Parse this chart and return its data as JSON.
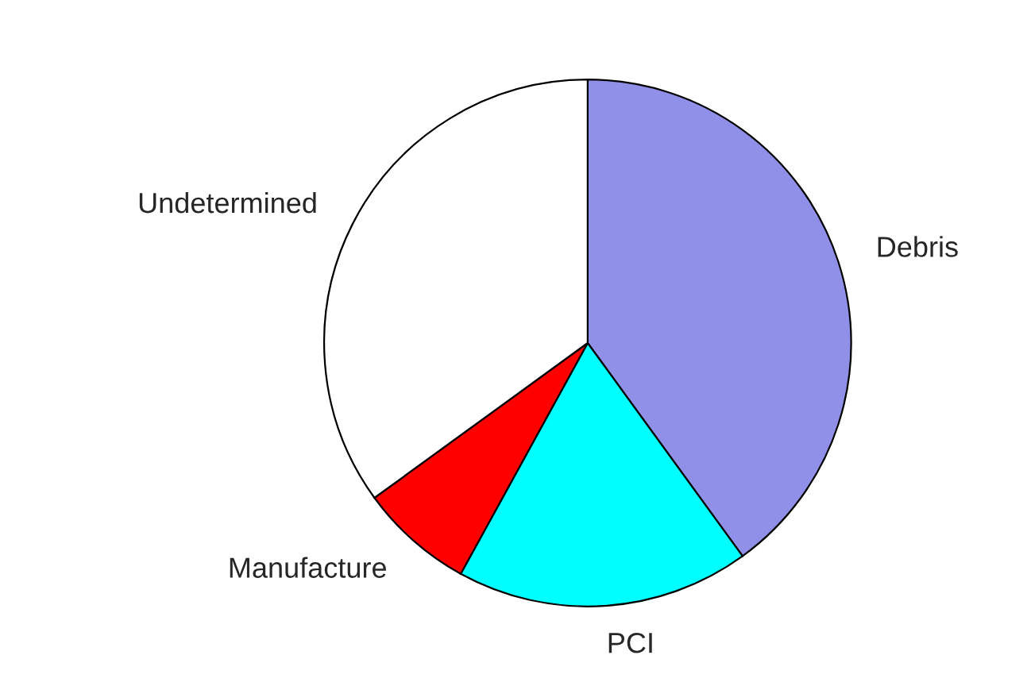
{
  "chart_data": {
    "type": "pie",
    "categories": [
      "Debris",
      "PCI",
      "Manufacture",
      "Undetermined"
    ],
    "values": [
      40,
      18,
      7,
      35
    ],
    "colors": [
      "#9090e8",
      "#00ffff",
      "#ff0000",
      "#ffffff"
    ]
  }
}
